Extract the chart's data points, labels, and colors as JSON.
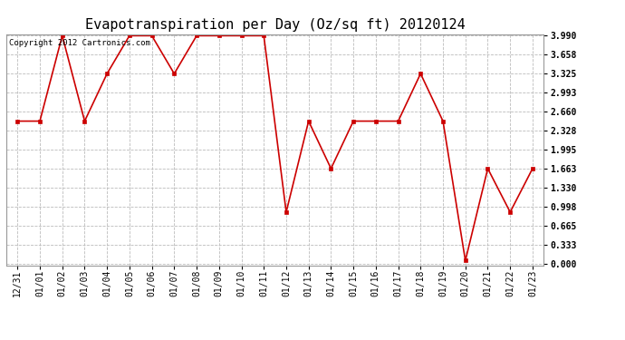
{
  "title": "Evapotranspiration per Day (Oz/sq ft) 20120124",
  "copyright_text": "Copyright 2012 Cartronics.com",
  "x_labels": [
    "12/31",
    "01/01",
    "01/02",
    "01/03",
    "01/04",
    "01/05",
    "01/06",
    "01/07",
    "01/08",
    "01/09",
    "01/10",
    "01/11",
    "01/12",
    "01/13",
    "01/14",
    "01/15",
    "01/16",
    "01/17",
    "01/18",
    "01/19",
    "01/20",
    "01/21",
    "01/22",
    "01/23"
  ],
  "y_values": [
    2.494,
    2.494,
    3.99,
    2.494,
    3.325,
    3.99,
    3.99,
    3.325,
    3.99,
    3.99,
    3.99,
    3.99,
    0.9,
    2.494,
    1.663,
    2.494,
    2.494,
    2.494,
    3.325,
    2.494,
    0.05,
    1.663,
    0.9,
    1.663
  ],
  "line_color": "#cc0000",
  "marker": "s",
  "marker_color": "#cc0000",
  "marker_size": 3,
  "ylim_min": 0.0,
  "ylim_max": 3.99,
  "yticks": [
    0.0,
    0.333,
    0.665,
    0.998,
    1.33,
    1.663,
    1.995,
    2.328,
    2.66,
    2.993,
    3.325,
    3.658,
    3.99
  ],
  "background_color": "#ffffff",
  "grid_color": "#bbbbbb",
  "title_fontsize": 11,
  "tick_fontsize": 7,
  "copyright_fontsize": 6.5,
  "linewidth": 1.2
}
